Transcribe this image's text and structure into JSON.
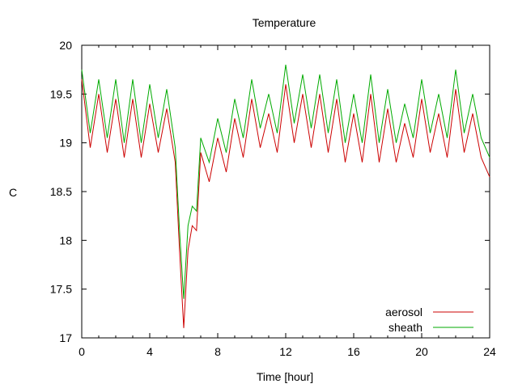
{
  "chart_data": {
    "type": "line",
    "title": "Temperature",
    "xlabel": "Time [hour]",
    "ylabel": "C",
    "xlim": [
      0,
      24
    ],
    "ylim": [
      17,
      20
    ],
    "xticks": [
      0,
      4,
      8,
      12,
      16,
      20,
      24
    ],
    "yticks": [
      17,
      17.5,
      18,
      18.5,
      19,
      19.5,
      20
    ],
    "ytick_labels": [
      "17",
      "17.5",
      "18",
      "18.5",
      "19",
      "19.5",
      "20"
    ],
    "grid": false,
    "legend_position": "bottom-right",
    "x": [
      0.0,
      0.5,
      1.0,
      1.5,
      2.0,
      2.5,
      3.0,
      3.5,
      4.0,
      4.5,
      5.0,
      5.5,
      5.75,
      6.0,
      6.25,
      6.5,
      6.75,
      7.0,
      7.5,
      8.0,
      8.5,
      9.0,
      9.5,
      10.0,
      10.5,
      11.0,
      11.5,
      12.0,
      12.5,
      13.0,
      13.5,
      14.0,
      14.5,
      15.0,
      15.5,
      16.0,
      16.5,
      17.0,
      17.5,
      18.0,
      18.5,
      19.0,
      19.5,
      20.0,
      20.5,
      21.0,
      21.5,
      22.0,
      22.5,
      23.0,
      23.5,
      24.0
    ],
    "series": [
      {
        "name": "aerosol",
        "color": "#cc0000",
        "values": [
          19.65,
          18.95,
          19.5,
          18.9,
          19.45,
          18.85,
          19.45,
          18.85,
          19.4,
          18.9,
          19.35,
          18.8,
          17.9,
          17.1,
          17.9,
          18.15,
          18.1,
          18.9,
          18.6,
          19.05,
          18.7,
          19.25,
          18.85,
          19.45,
          18.95,
          19.3,
          18.9,
          19.6,
          19.0,
          19.5,
          18.95,
          19.5,
          18.9,
          19.45,
          18.8,
          19.3,
          18.8,
          19.5,
          18.8,
          19.35,
          18.8,
          19.2,
          18.85,
          19.45,
          18.9,
          19.3,
          18.85,
          19.55,
          18.9,
          19.3,
          18.85,
          18.65
        ]
      },
      {
        "name": "sheath",
        "color": "#00aa00",
        "values": [
          19.75,
          19.1,
          19.65,
          19.05,
          19.65,
          19.0,
          19.65,
          19.0,
          19.6,
          19.05,
          19.55,
          18.95,
          18.1,
          17.4,
          18.15,
          18.35,
          18.3,
          19.05,
          18.8,
          19.25,
          18.9,
          19.45,
          19.05,
          19.65,
          19.15,
          19.5,
          19.1,
          19.8,
          19.2,
          19.7,
          19.15,
          19.7,
          19.1,
          19.65,
          19.0,
          19.5,
          19.0,
          19.7,
          19.0,
          19.55,
          19.0,
          19.4,
          19.05,
          19.65,
          19.1,
          19.5,
          19.05,
          19.75,
          19.1,
          19.5,
          19.05,
          18.85
        ]
      }
    ]
  }
}
